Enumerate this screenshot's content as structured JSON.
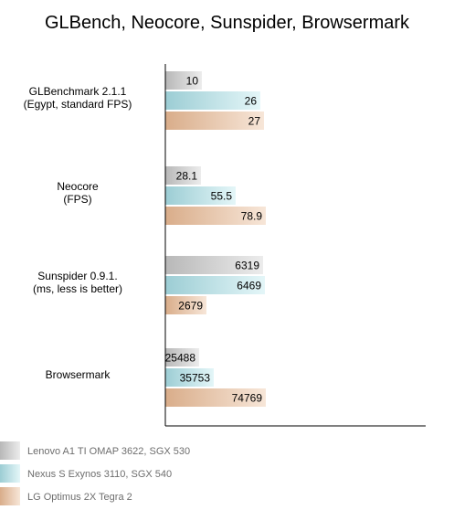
{
  "chart_data": {
    "type": "bar",
    "orientation": "horizontal",
    "title": "GLBench, Neocore, Sunspider, Browsermark",
    "categories": [
      [
        "GLBenchmark 2.1.1",
        "(Egypt, standard FPS)"
      ],
      [
        "Neocore",
        "(FPS)"
      ],
      [
        "Sunspider 0.9.1.",
        "(ms, less is better)"
      ],
      [
        "Browsermark"
      ]
    ],
    "series": [
      {
        "name": "Lenovo A1 TI OMAP 3622, SGX 530",
        "color": "#b8b8b8",
        "values": [
          10,
          28.1,
          6319,
          25488
        ],
        "labels": [
          "10",
          "28.1",
          "6319",
          "25488"
        ]
      },
      {
        "name": "Nexus S Exynos 3110, SGX 540",
        "color": "#9ccdd4",
        "values": [
          26,
          55.5,
          6469,
          35753
        ],
        "labels": [
          "26",
          "55.5",
          "6469",
          "35753"
        ]
      },
      {
        "name": "LG Optimus 2X Tegra 2",
        "color": "#d9ad8a",
        "values": [
          27,
          78.9,
          2679,
          74769
        ],
        "labels": [
          "27",
          "78.9",
          "2679",
          "74769"
        ]
      }
    ],
    "legend_position": "bottom-left",
    "grid": false
  }
}
